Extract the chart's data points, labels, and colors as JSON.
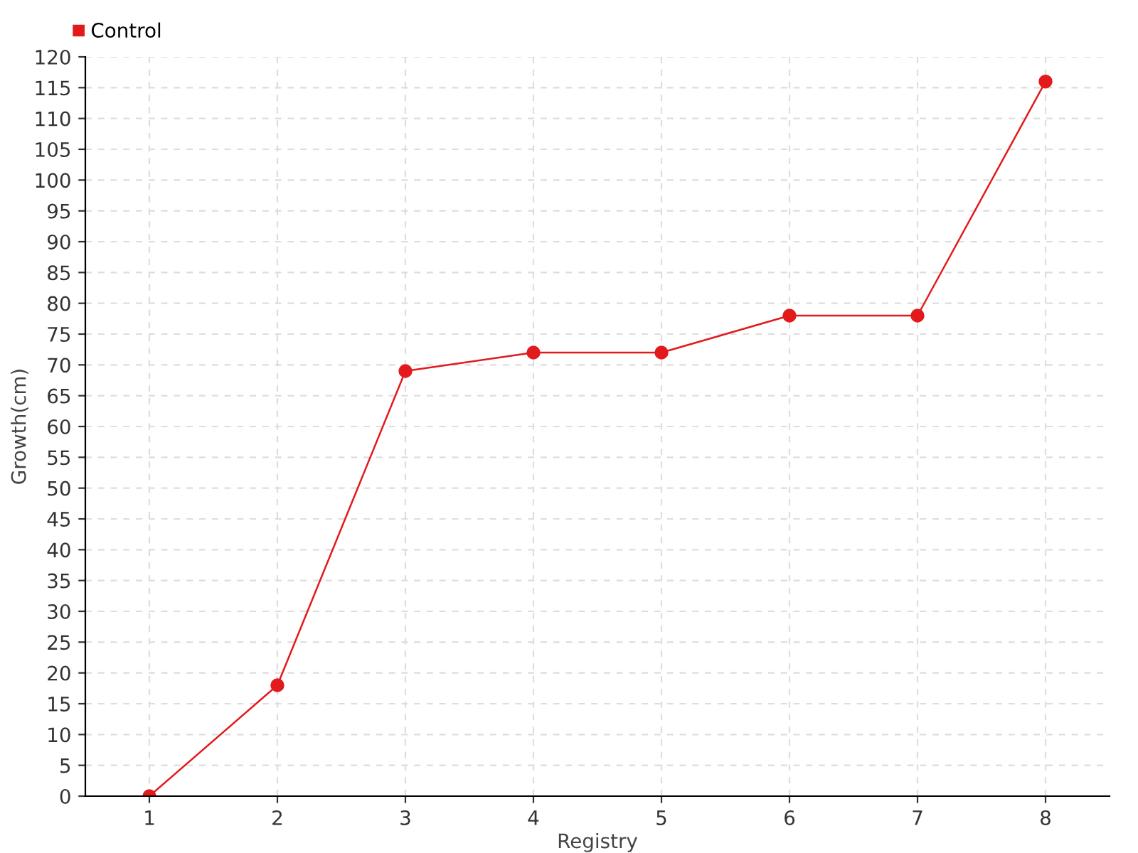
{
  "chart_data": {
    "type": "line",
    "xlabel": "Registry",
    "ylabel": "Growth(cm)",
    "categories": [
      "1",
      "2",
      "3",
      "4",
      "5",
      "6",
      "7",
      "8"
    ],
    "series": [
      {
        "name": "Control",
        "color": "#e31a1c",
        "values": [
          0,
          18,
          69,
          72,
          72,
          78,
          78,
          116
        ]
      }
    ],
    "ylim": [
      0,
      120
    ],
    "yticks": [
      0,
      5,
      10,
      15,
      20,
      25,
      30,
      35,
      40,
      45,
      50,
      55,
      60,
      65,
      70,
      75,
      80,
      85,
      90,
      95,
      100,
      105,
      110,
      115,
      120
    ],
    "grid": true,
    "legend": "top left",
    "marker": "circle",
    "line_style": "solid"
  }
}
